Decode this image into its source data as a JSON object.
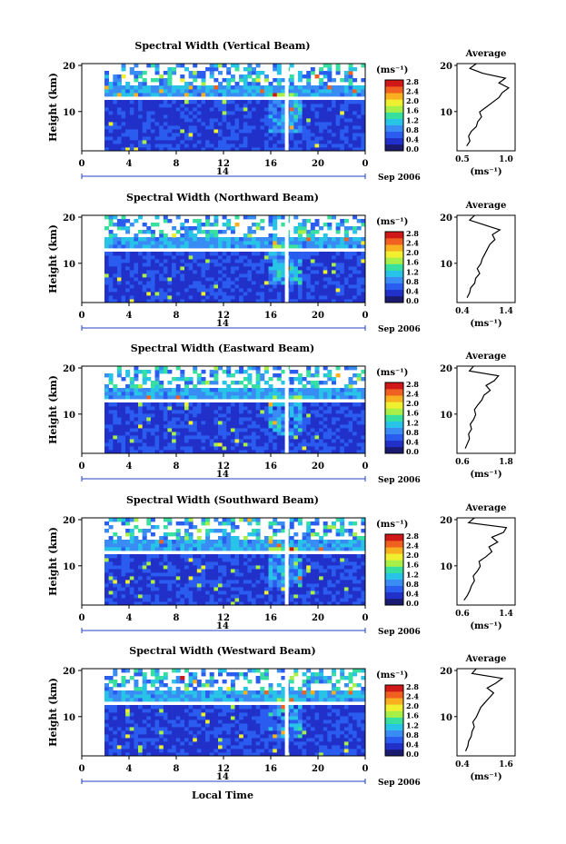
{
  "figure": {
    "xlabel": "Local Time",
    "ylabel": "Height (km)",
    "date_day": "14",
    "date_month": "Sep 2006",
    "colorbar_unit": "(ms⁻¹)",
    "colorbar_ticks": [
      "0.0",
      "0.4",
      "0.8",
      "1.2",
      "1.6",
      "2.0",
      "2.4",
      "2.8"
    ],
    "avg_title": "Average",
    "avg_xlabel": "(ms⁻¹)",
    "colormap": [
      "#1a1a6e",
      "#2030c8",
      "#2a5cf0",
      "#3a8cf5",
      "#28c4e8",
      "#38e0a0",
      "#a8f048",
      "#f0f030",
      "#f8b020",
      "#f06020",
      "#d01818"
    ]
  },
  "chart_data": [
    {
      "type": "heatmap",
      "title": "Spectral Width (Vertical Beam)",
      "xlabel": "Local Time",
      "ylabel": "Height (km)",
      "xlim": [
        0,
        24
      ],
      "ylim": [
        2,
        20
      ],
      "xticks": [
        "0",
        "4",
        "8",
        "12",
        "16",
        "20",
        "0"
      ],
      "yticks": [
        "20",
        "10"
      ],
      "clim": [
        0,
        3.0
      ],
      "average_profile": {
        "title": "Average",
        "xlabel": "(ms⁻¹)",
        "xticks": [
          "0.5",
          "1.0"
        ],
        "xlim": [
          0.4,
          1.3
        ],
        "yticks": [
          "20",
          "10"
        ],
        "height": [
          3,
          4,
          5,
          6,
          7,
          8,
          9,
          10,
          11,
          12,
          13,
          14,
          15,
          16,
          17,
          18,
          19,
          20
        ],
        "value": [
          0.55,
          0.6,
          0.58,
          0.62,
          0.7,
          0.72,
          0.78,
          0.75,
          0.85,
          0.95,
          1.05,
          1.1,
          1.2,
          1.05,
          1.15,
          0.8,
          0.6,
          0.7
        ]
      }
    },
    {
      "type": "heatmap",
      "title": "Spectral Width (Northward Beam)",
      "xlabel": "Local Time",
      "ylabel": "Height (km)",
      "xlim": [
        0,
        24
      ],
      "ylim": [
        2,
        20
      ],
      "xticks": [
        "0",
        "4",
        "8",
        "12",
        "16",
        "20",
        "0"
      ],
      "yticks": [
        "20",
        "10"
      ],
      "clim": [
        0,
        3.0
      ],
      "average_profile": {
        "title": "Average",
        "xlabel": "(ms⁻¹)",
        "xticks": [
          "0.4",
          "1.4"
        ],
        "xlim": [
          0.35,
          1.5
        ],
        "yticks": [
          "20",
          "10"
        ],
        "height": [
          3,
          4,
          5,
          6,
          7,
          8,
          9,
          10,
          11,
          12,
          13,
          14,
          15,
          16,
          17,
          18,
          19,
          20
        ],
        "value": [
          0.55,
          0.6,
          0.62,
          0.7,
          0.72,
          0.8,
          0.75,
          0.82,
          0.85,
          0.9,
          0.95,
          1.0,
          1.1,
          1.05,
          1.2,
          0.9,
          0.6,
          0.7
        ]
      }
    },
    {
      "type": "heatmap",
      "title": "Spectral Width (Eastward Beam)",
      "xlabel": "Local Time",
      "ylabel": "Height (km)",
      "xlim": [
        0,
        24
      ],
      "ylim": [
        2,
        20
      ],
      "xticks": [
        "0",
        "4",
        "8",
        "12",
        "16",
        "20",
        "0"
      ],
      "yticks": [
        "20",
        "10"
      ],
      "clim": [
        0,
        3.0
      ],
      "average_profile": {
        "title": "Average",
        "xlabel": "(ms⁻¹)",
        "xticks": [
          "0.6",
          "1.8"
        ],
        "xlim": [
          0.5,
          1.9
        ],
        "yticks": [
          "20",
          "10"
        ],
        "height": [
          3,
          4,
          5,
          6,
          7,
          8,
          9,
          10,
          11,
          12,
          13,
          14,
          15,
          16,
          17,
          18,
          19,
          20
        ],
        "value": [
          0.7,
          0.75,
          0.8,
          0.78,
          0.85,
          0.82,
          0.9,
          0.95,
          0.92,
          1.0,
          1.1,
          1.15,
          1.3,
          1.2,
          1.4,
          1.5,
          0.8,
          0.9
        ]
      }
    },
    {
      "type": "heatmap",
      "title": "Spectral Width (Southward Beam)",
      "xlabel": "Local Time",
      "ylabel": "Height (km)",
      "xlim": [
        0,
        24
      ],
      "ylim": [
        2,
        20
      ],
      "xticks": [
        "0",
        "4",
        "8",
        "12",
        "16",
        "20",
        "0"
      ],
      "yticks": [
        "20",
        "10"
      ],
      "clim": [
        0,
        3.0
      ],
      "average_profile": {
        "title": "Average",
        "xlabel": "(ms⁻¹)",
        "xticks": [
          "0.6",
          "1.4"
        ],
        "xlim": [
          0.5,
          1.5
        ],
        "yticks": [
          "20",
          "10"
        ],
        "height": [
          3,
          4,
          5,
          6,
          7,
          8,
          9,
          10,
          11,
          12,
          13,
          14,
          15,
          16,
          17,
          18,
          19,
          20
        ],
        "value": [
          0.62,
          0.68,
          0.72,
          0.75,
          0.8,
          0.78,
          0.85,
          0.9,
          0.88,
          1.0,
          1.1,
          1.05,
          1.2,
          1.1,
          1.3,
          1.35,
          0.7,
          0.8
        ]
      }
    },
    {
      "type": "heatmap",
      "title": "Spectral Width (Westward Beam)",
      "xlabel": "Local Time",
      "ylabel": "Height (km)",
      "xlim": [
        0,
        24
      ],
      "ylim": [
        2,
        20
      ],
      "xticks": [
        "0",
        "4",
        "8",
        "12",
        "16",
        "20",
        "0"
      ],
      "yticks": [
        "20",
        "10"
      ],
      "clim": [
        0,
        3.0
      ],
      "average_profile": {
        "title": "Average",
        "xlabel": "(ms⁻¹)",
        "xticks": [
          "0.4",
          "1.6"
        ],
        "xlim": [
          0.35,
          1.7
        ],
        "yticks": [
          "20",
          "10"
        ],
        "height": [
          3,
          4,
          5,
          6,
          7,
          8,
          9,
          10,
          11,
          12,
          13,
          14,
          15,
          16,
          17,
          18,
          19,
          20
        ],
        "value": [
          0.55,
          0.6,
          0.62,
          0.68,
          0.7,
          0.75,
          0.72,
          0.8,
          0.85,
          0.9,
          1.0,
          1.1,
          1.2,
          1.05,
          1.25,
          1.4,
          0.7,
          0.8
        ]
      }
    }
  ]
}
